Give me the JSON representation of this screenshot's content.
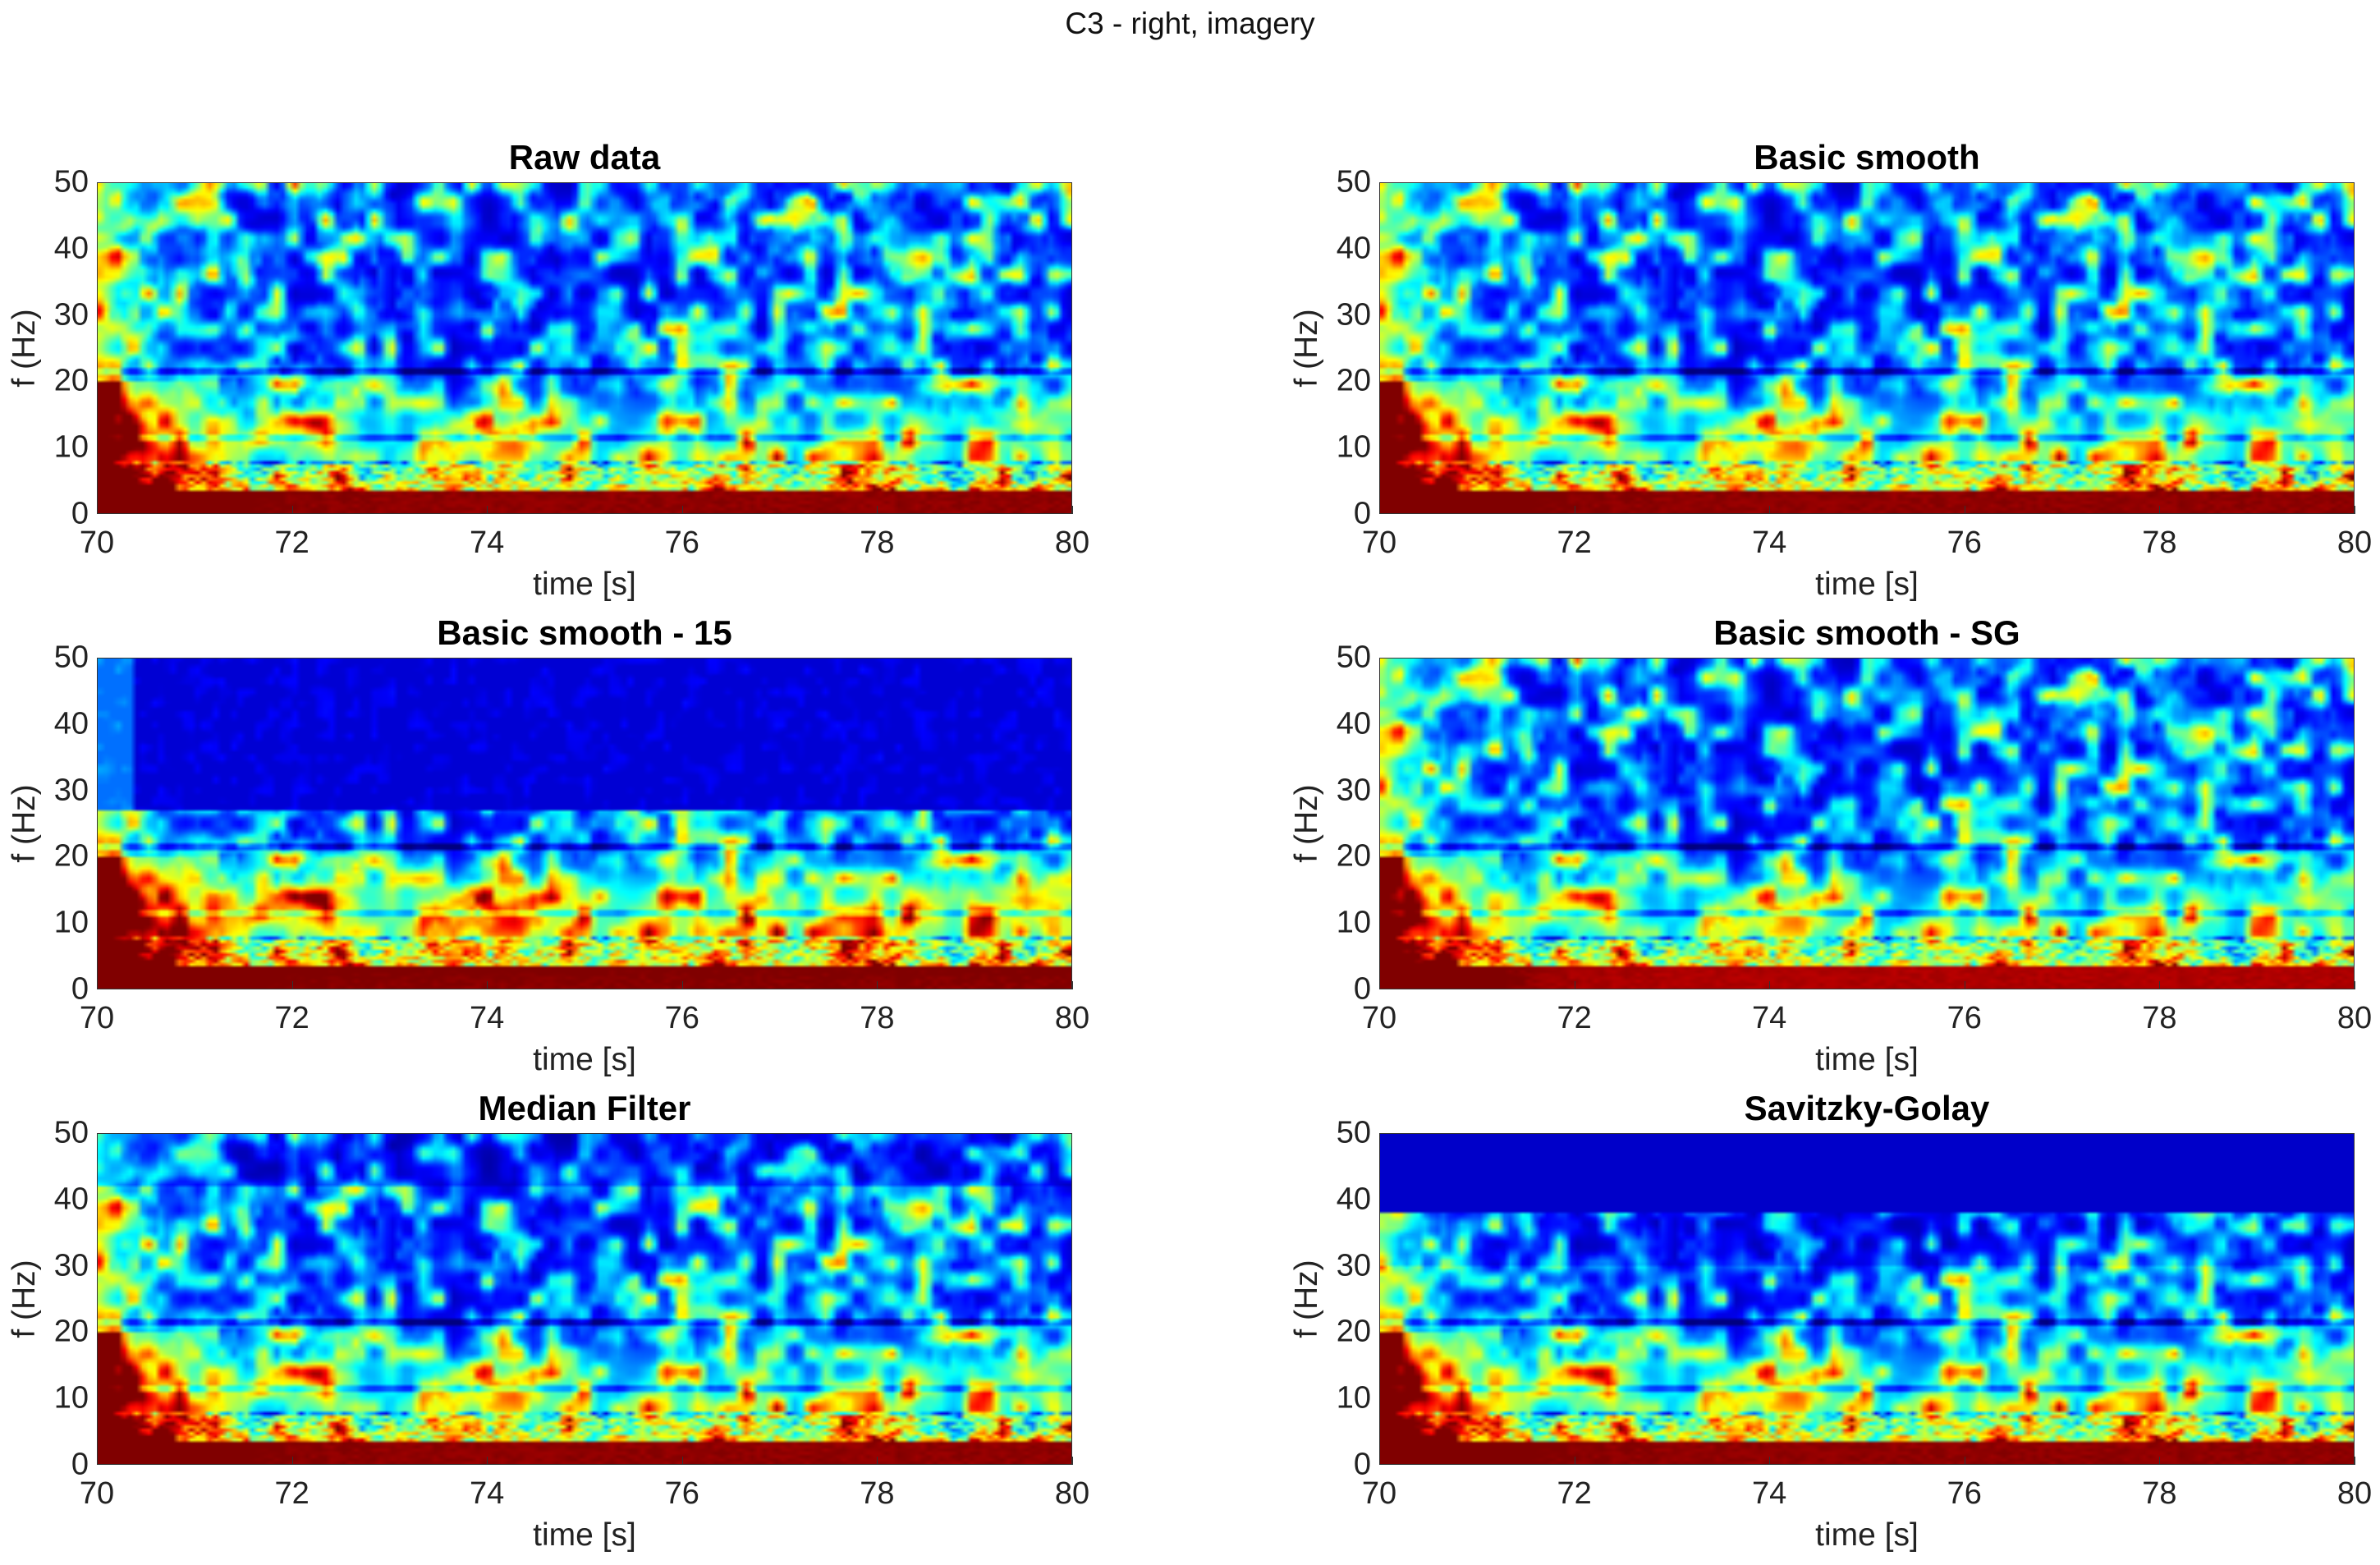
{
  "figure_title": "C3 - right, imagery",
  "colormap": "jet",
  "chart_data": [
    {
      "type": "heatmap",
      "title": "Raw data",
      "xlabel": "time [s]",
      "ylabel": "f (Hz)",
      "xlim": [
        70,
        80
      ],
      "ylim": [
        0,
        50
      ],
      "xticks": [
        "70",
        "72",
        "74",
        "76",
        "78",
        "80"
      ],
      "yticks": [
        "0",
        "10",
        "20",
        "30",
        "40",
        "50"
      ],
      "smoothing": "none"
    },
    {
      "type": "heatmap",
      "title": "Basic smooth",
      "xlabel": "time [s]",
      "ylabel": "f (Hz)",
      "xlim": [
        70,
        80
      ],
      "ylim": [
        0,
        50
      ],
      "xticks": [
        "70",
        "72",
        "74",
        "76",
        "78",
        "80"
      ],
      "yticks": [
        "0",
        "10",
        "20",
        "30",
        "40",
        "50"
      ],
      "smoothing": "basic"
    },
    {
      "type": "heatmap",
      "title": "Basic smooth - 15",
      "xlabel": "time [s]",
      "ylabel": "f (Hz)",
      "xlim": [
        70,
        80
      ],
      "ylim": [
        0,
        50
      ],
      "xticks": [
        "70",
        "72",
        "74",
        "76",
        "78",
        "80"
      ],
      "yticks": [
        "0",
        "10",
        "20",
        "30",
        "40",
        "50"
      ],
      "smoothing": "basic-15"
    },
    {
      "type": "heatmap",
      "title": "Basic smooth - SG",
      "xlabel": "time [s]",
      "ylabel": "f (Hz)",
      "xlim": [
        70,
        80
      ],
      "ylim": [
        0,
        50
      ],
      "xticks": [
        "70",
        "72",
        "74",
        "76",
        "78",
        "80"
      ],
      "yticks": [
        "0",
        "10",
        "20",
        "30",
        "40",
        "50"
      ],
      "smoothing": "basic-sg"
    },
    {
      "type": "heatmap",
      "title": "Median Filter",
      "xlabel": "time [s]",
      "ylabel": "f (Hz)",
      "xlim": [
        70,
        80
      ],
      "ylim": [
        0,
        50
      ],
      "xticks": [
        "70",
        "72",
        "74",
        "76",
        "78",
        "80"
      ],
      "yticks": [
        "0",
        "10",
        "20",
        "30",
        "40",
        "50"
      ],
      "smoothing": "median"
    },
    {
      "type": "heatmap",
      "title": "Savitzky-Golay",
      "xlabel": "time [s]",
      "ylabel": "f (Hz)",
      "xlim": [
        70,
        80
      ],
      "ylim": [
        0,
        50
      ],
      "xticks": [
        "70",
        "72",
        "74",
        "76",
        "78",
        "80"
      ],
      "yticks": [
        "0",
        "10",
        "20",
        "30",
        "40",
        "50"
      ],
      "smoothing": "savitzky-golay"
    }
  ]
}
